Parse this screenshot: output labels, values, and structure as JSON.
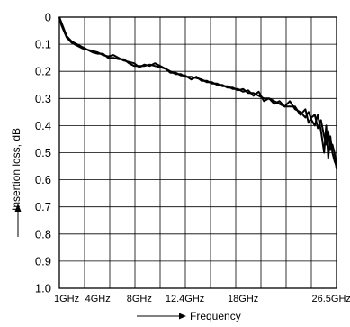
{
  "chart_data": {
    "type": "line",
    "title": "",
    "xlabel": "Frequency",
    "ylabel": "Insertion loss, dB",
    "ylim": [
      0,
      1.0
    ],
    "y_inverted": true,
    "grid": true,
    "legend": "none",
    "x_range_ghz": [
      0.3,
      27.0
    ],
    "x_ticks": [
      {
        "value": 1,
        "label": "1GHz"
      },
      {
        "value": 4,
        "label": "4GHz"
      },
      {
        "value": 8,
        "label": "8GHz"
      },
      {
        "value": 12.4,
        "label": "12.4GHz"
      },
      {
        "value": 18,
        "label": "18GHz"
      },
      {
        "value": 26.5,
        "label": "26.5GHz"
      }
    ],
    "y_ticks": [
      {
        "value": 0,
        "label": "0"
      },
      {
        "value": 0.1,
        "label": "0.1"
      },
      {
        "value": 0.2,
        "label": "0.2"
      },
      {
        "value": 0.3,
        "label": "0.3"
      },
      {
        "value": 0.4,
        "label": "0.4"
      },
      {
        "value": 0.5,
        "label": "0.5"
      },
      {
        "value": 0.6,
        "label": "0.6"
      },
      {
        "value": 0.7,
        "label": "0.7"
      },
      {
        "value": 0.8,
        "label": "0.8"
      },
      {
        "value": 0.9,
        "label": "0.9"
      },
      {
        "value": 1.0,
        "label": "1.0"
      }
    ],
    "series": [
      {
        "color": "#000000",
        "x": [
          0.3,
          0.5,
          1.0,
          1.5,
          2.0,
          2.5,
          3.0,
          3.5,
          4.0,
          4.5,
          5.0,
          5.5,
          6.0,
          6.5,
          7.0,
          7.5,
          8.0,
          8.5,
          9.0,
          9.5,
          10.0,
          10.5,
          11.0,
          11.5,
          12.0,
          12.4,
          13.0,
          13.5,
          14.0,
          14.5,
          15.0,
          15.5,
          16.0,
          16.5,
          17.0,
          17.5,
          18.0,
          18.5,
          19.0,
          19.5,
          20.0,
          20.5,
          21.0,
          21.5,
          22.0,
          22.5,
          23.0,
          23.5,
          24.0,
          24.3,
          24.6,
          24.9,
          25.2,
          25.5,
          25.8,
          26.0,
          26.2,
          26.4,
          26.6,
          26.8,
          27.0
        ],
        "values": [
          0.0,
          0.02,
          0.07,
          0.09,
          0.1,
          0.11,
          0.12,
          0.125,
          0.13,
          0.14,
          0.145,
          0.14,
          0.15,
          0.16,
          0.165,
          0.17,
          0.185,
          0.175,
          0.18,
          0.17,
          0.18,
          0.19,
          0.2,
          0.21,
          0.21,
          0.22,
          0.22,
          0.225,
          0.23,
          0.24,
          0.24,
          0.25,
          0.25,
          0.26,
          0.26,
          0.27,
          0.265,
          0.28,
          0.28,
          0.29,
          0.3,
          0.3,
          0.31,
          0.32,
          0.33,
          0.31,
          0.34,
          0.35,
          0.37,
          0.35,
          0.38,
          0.4,
          0.36,
          0.42,
          0.5,
          0.4,
          0.52,
          0.44,
          0.5,
          0.53,
          0.55
        ]
      },
      {
        "color": "#000000",
        "x": [
          0.3,
          0.5,
          1.0,
          1.5,
          2.0,
          2.5,
          3.0,
          3.5,
          4.0,
          4.5,
          5.0,
          5.5,
          6.0,
          6.5,
          7.0,
          7.5,
          8.0,
          8.5,
          9.0,
          9.5,
          10.0,
          10.5,
          11.0,
          11.5,
          12.0,
          12.4,
          13.0,
          13.5,
          14.0,
          14.5,
          15.0,
          15.5,
          16.0,
          16.5,
          17.0,
          17.5,
          18.0,
          18.5,
          19.0,
          19.5,
          20.0,
          20.5,
          21.0,
          21.5,
          22.0,
          22.5,
          23.0,
          23.5,
          24.0,
          24.3,
          24.6,
          24.9,
          25.2,
          25.5,
          25.8,
          26.0,
          26.2,
          26.4,
          26.6,
          26.8,
          27.0
        ],
        "values": [
          0.0,
          0.03,
          0.075,
          0.095,
          0.105,
          0.115,
          0.12,
          0.13,
          0.135,
          0.135,
          0.15,
          0.15,
          0.155,
          0.155,
          0.17,
          0.18,
          0.18,
          0.18,
          0.175,
          0.18,
          0.185,
          0.19,
          0.205,
          0.205,
          0.215,
          0.215,
          0.23,
          0.22,
          0.235,
          0.235,
          0.245,
          0.245,
          0.255,
          0.255,
          0.265,
          0.265,
          0.275,
          0.27,
          0.29,
          0.275,
          0.31,
          0.3,
          0.32,
          0.31,
          0.33,
          0.33,
          0.33,
          0.36,
          0.34,
          0.39,
          0.37,
          0.36,
          0.41,
          0.38,
          0.44,
          0.47,
          0.42,
          0.49,
          0.47,
          0.5,
          0.56
        ]
      }
    ]
  }
}
